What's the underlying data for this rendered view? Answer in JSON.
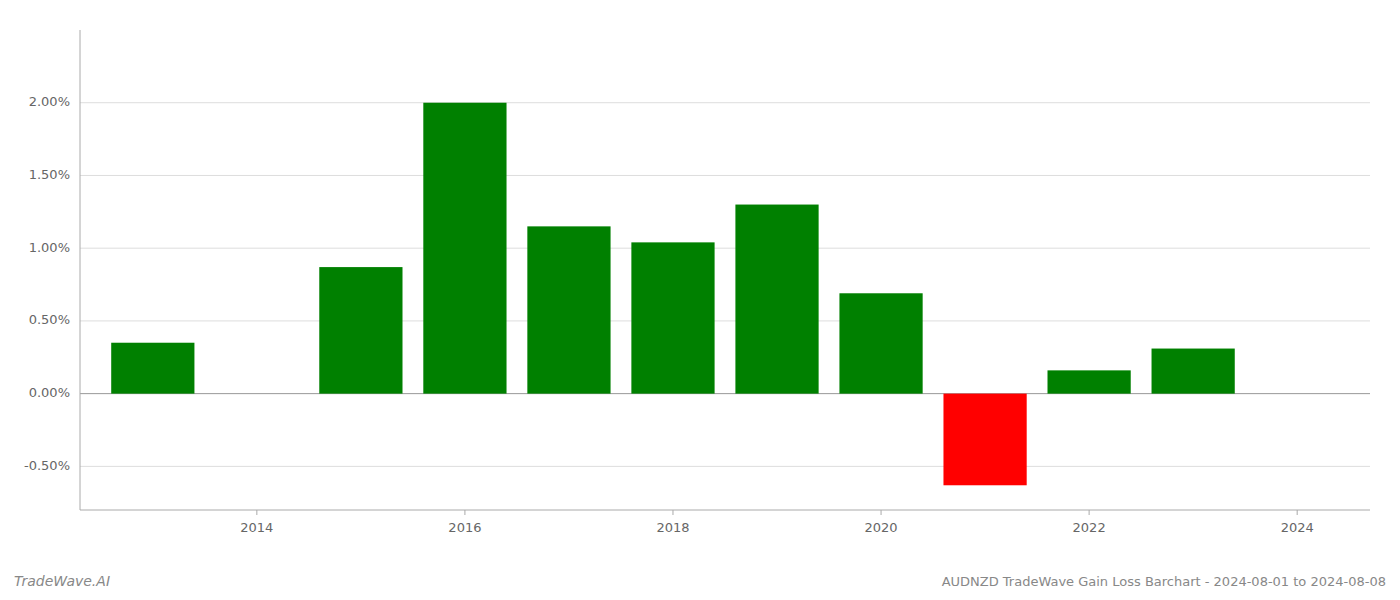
{
  "chart_data": {
    "type": "bar",
    "title": "AUDNZD TradeWave Gain Loss Barchart - 2024-08-01 to 2024-08-08",
    "annotations": [
      "TradeWave.AI"
    ],
    "x": [
      2013,
      2015,
      2016,
      2017,
      2018,
      2019,
      2020,
      2021,
      2022,
      2023
    ],
    "values": [
      0.0035,
      0.0087,
      0.02,
      0.0115,
      0.0104,
      0.013,
      0.0069,
      -0.0063,
      0.0016,
      0.0031
    ],
    "colors": [
      "#008000",
      "#008000",
      "#008000",
      "#008000",
      "#008000",
      "#008000",
      "#008000",
      "#ff0000",
      "#008000",
      "#008000"
    ],
    "xlim": [
      2012.3,
      2024.7
    ],
    "xticks": [
      2014,
      2016,
      2018,
      2020,
      2022,
      2024
    ],
    "ylim": [
      -0.008,
      0.025
    ],
    "yticks": [
      {
        "value": -0.005,
        "label": "-0.50%"
      },
      {
        "value": 0.0,
        "label": "0.00%"
      },
      {
        "value": 0.005,
        "label": "0.50%"
      },
      {
        "value": 0.01,
        "label": "1.00%"
      },
      {
        "value": 0.015,
        "label": "1.50%"
      },
      {
        "value": 0.02,
        "label": "2.00%"
      }
    ],
    "grid": true
  }
}
